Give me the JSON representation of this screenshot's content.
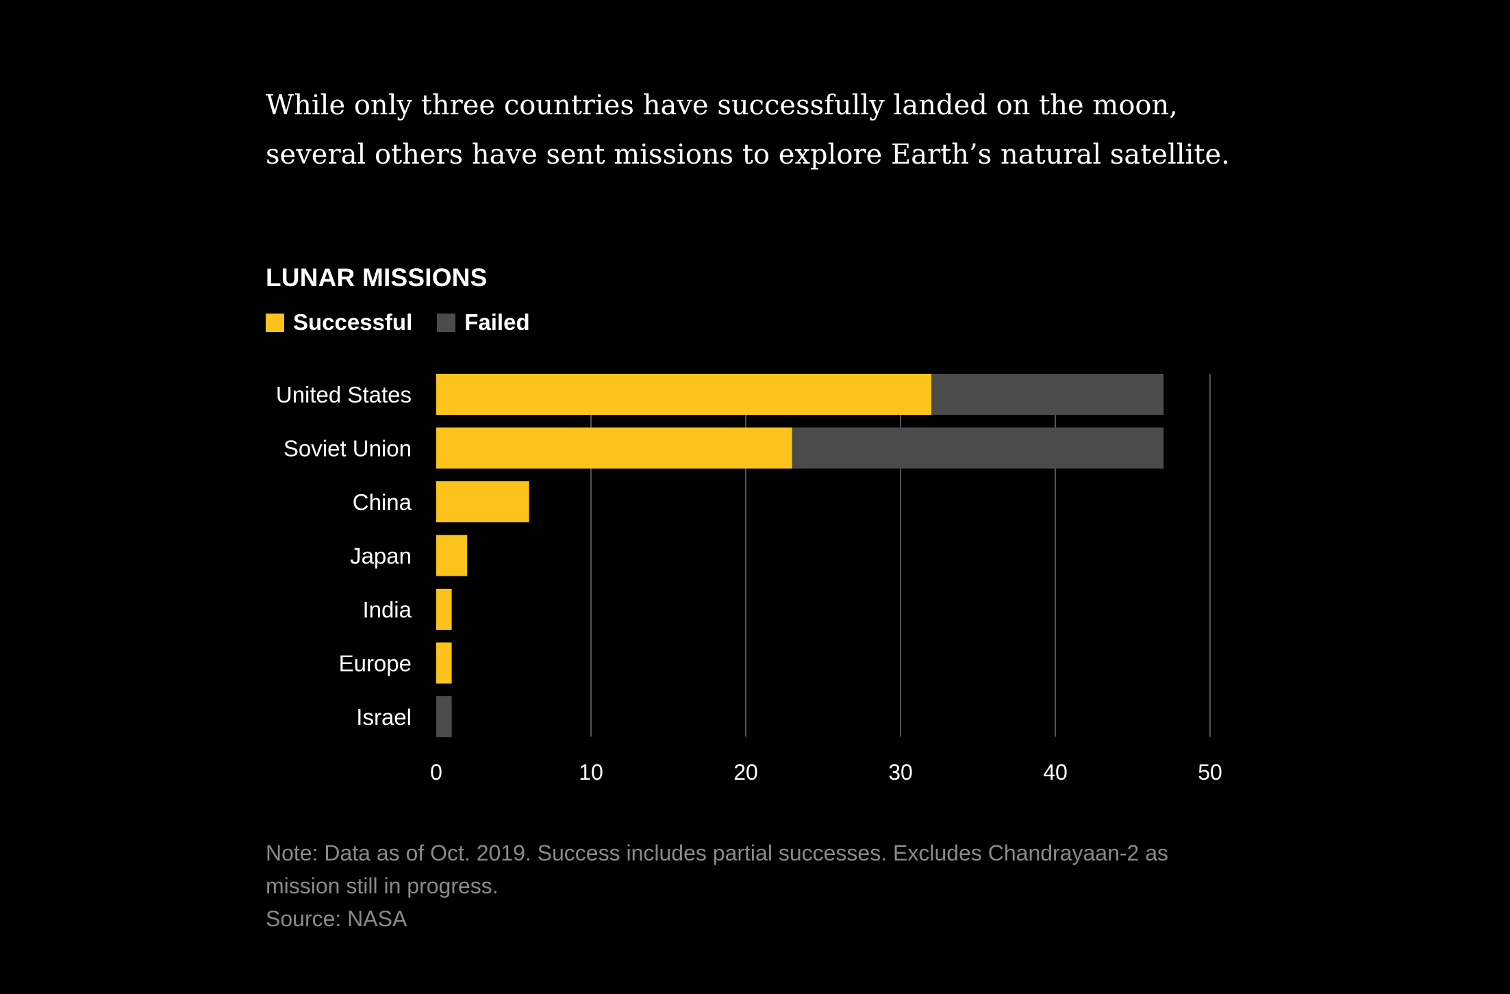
{
  "headline": "While only three countries have successfully landed on the moon, several others have sent missions to explore Earth’s natural satellite.",
  "note": "Note: Data as of Oct. 2019. Success includes partial successes. Excludes Chandrayaan-2 as mission still in progress.",
  "source": "Source: NASA",
  "colors": {
    "successful": "#FDC31D",
    "failed": "#4B4B4B",
    "grid": "#555555",
    "background": "#000000"
  },
  "chart_data": {
    "type": "bar",
    "orientation": "horizontal",
    "stacked": true,
    "title": "LUNAR MISSIONS",
    "categories": [
      "United States",
      "Soviet Union",
      "China",
      "Japan",
      "India",
      "Europe",
      "Israel"
    ],
    "series": [
      {
        "name": "Successful",
        "values": [
          32,
          23,
          6,
          2,
          1,
          1,
          0
        ]
      },
      {
        "name": "Failed",
        "values": [
          15,
          24,
          0,
          0,
          0,
          0,
          1
        ]
      }
    ],
    "xlim": [
      0,
      50
    ],
    "xticks": [
      "0",
      "10",
      "20",
      "30",
      "40",
      "50"
    ],
    "grid": "vertical",
    "legend": "top-left"
  }
}
